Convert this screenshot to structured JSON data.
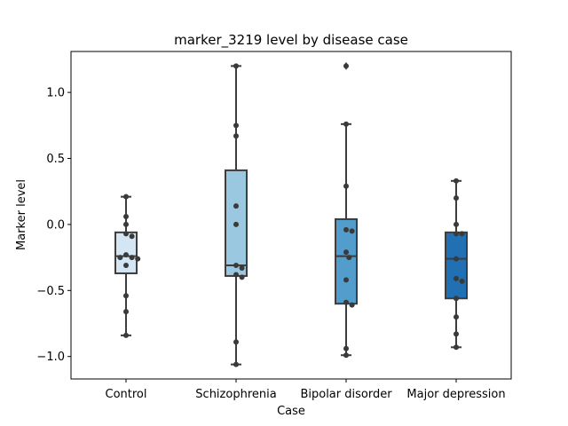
{
  "chart_data": {
    "type": "box",
    "title": "marker_3219 level by disease case",
    "xlabel": "Case",
    "ylabel": "Marker level",
    "ylim": [
      -1.17,
      1.31
    ],
    "yticks": [
      -1.0,
      -0.5,
      0.0,
      0.5,
      1.0
    ],
    "ytick_labels": [
      "−1.0",
      "−0.5",
      "0.0",
      "0.5",
      "1.0"
    ],
    "grid": false,
    "categories": [
      "Control",
      "Schizophrenia",
      "Bipolar disorder",
      "Major depression"
    ],
    "colors": [
      "#d4e5f3",
      "#9ac8e0",
      "#529dcc",
      "#2170b4"
    ],
    "boxes": [
      {
        "q1": -0.37,
        "median": -0.24,
        "q3": -0.06,
        "whisker_low": -0.84,
        "whisker_high": 0.21,
        "outliers": []
      },
      {
        "q1": -0.39,
        "median": -0.31,
        "q3": 0.41,
        "whisker_low": -1.06,
        "whisker_high": 1.2,
        "outliers": []
      },
      {
        "q1": -0.6,
        "median": -0.24,
        "q3": 0.04,
        "whisker_low": -0.99,
        "whisker_high": 0.76,
        "outliers": [
          1.2
        ]
      },
      {
        "q1": -0.56,
        "median": -0.26,
        "q3": -0.06,
        "whisker_low": -0.93,
        "whisker_high": 0.33,
        "outliers": []
      }
    ],
    "points": [
      [
        0.21,
        0.06,
        0.0,
        -0.07,
        -0.09,
        -0.23,
        -0.25,
        -0.25,
        -0.26,
        -0.31,
        -0.54,
        -0.66,
        -0.84
      ],
      [
        1.2,
        0.75,
        0.67,
        0.14,
        0.0,
        -0.31,
        -0.33,
        -0.38,
        -0.4,
        -0.89,
        -1.06
      ],
      [
        1.2,
        0.76,
        0.29,
        -0.04,
        -0.05,
        -0.21,
        -0.25,
        -0.42,
        -0.59,
        -0.61,
        -0.94,
        -0.99
      ],
      [
        0.33,
        0.2,
        0.0,
        -0.07,
        -0.07,
        -0.26,
        -0.41,
        -0.43,
        -0.56,
        -0.7,
        -0.83,
        -0.93
      ]
    ]
  }
}
